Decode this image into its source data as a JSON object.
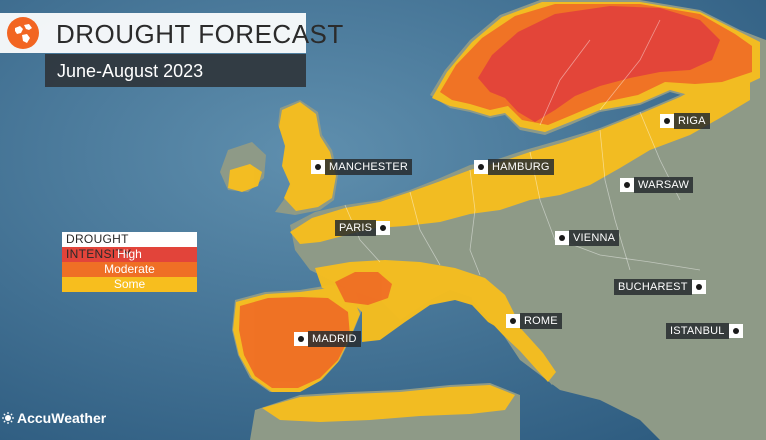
{
  "title": "DROUGHT FORECAST",
  "subtitle": "June-August 2023",
  "legend": {
    "title": "DROUGHT INTENSITY",
    "items": [
      {
        "label": "High",
        "color": "#e2443a"
      },
      {
        "label": "Moderate",
        "color": "#ef6f25"
      },
      {
        "label": "Some",
        "color": "#f7be1e"
      }
    ]
  },
  "cities": [
    "MANCHESTER",
    "HAMBURG",
    "RIGA",
    "WARSAW",
    "PARIS",
    "VIENNA",
    "BUCHAREST",
    "ROME",
    "MADRID",
    "ISTANBUL"
  ],
  "logo": "AccuWeather",
  "colors": {
    "sea": "#3d6f94",
    "land": "#8d9a86",
    "brand": "#f26522"
  }
}
